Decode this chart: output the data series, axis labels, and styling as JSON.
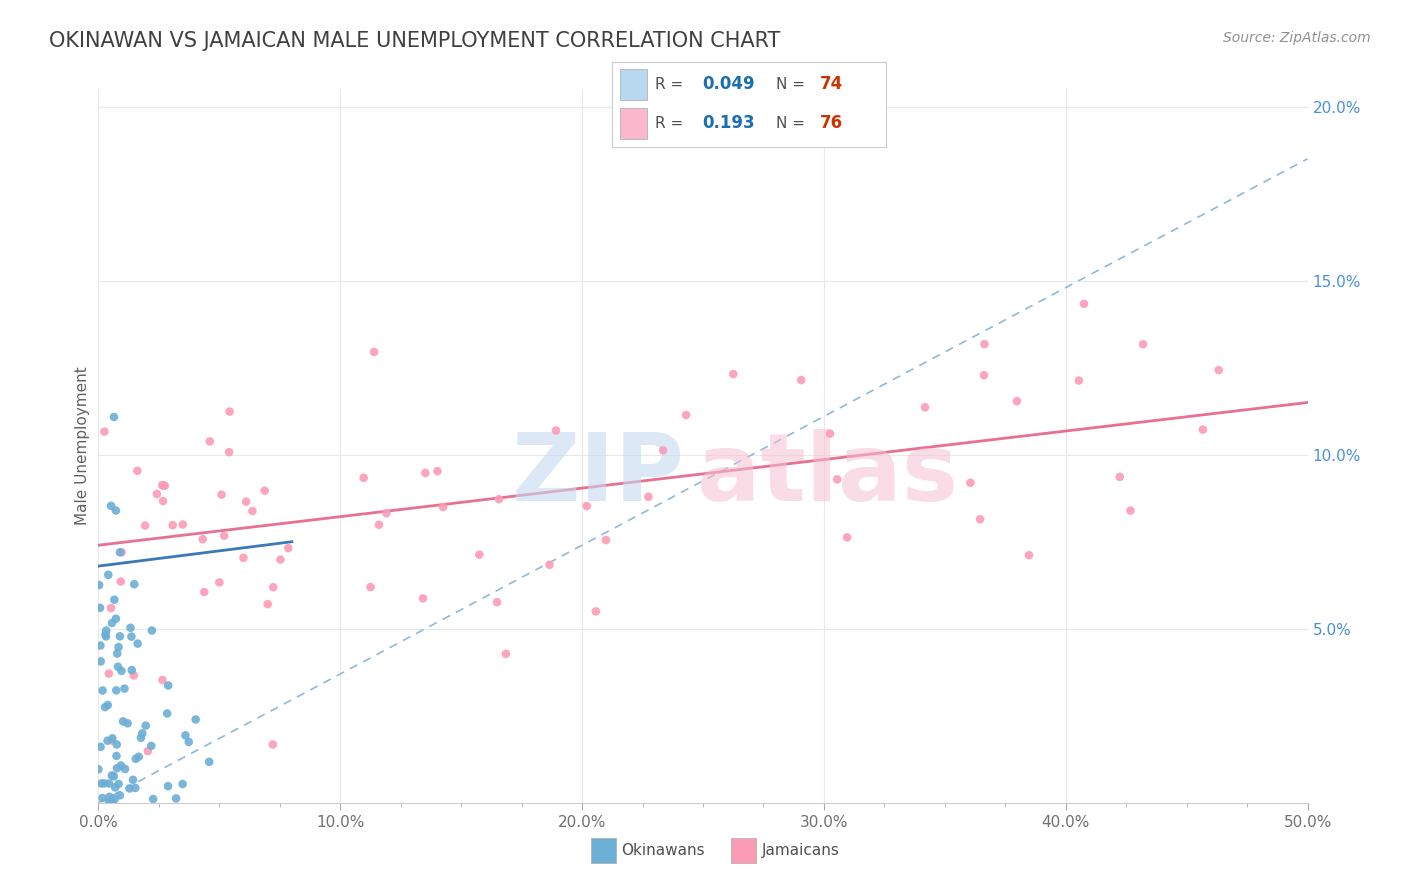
{
  "title": "OKINAWAN VS JAMAICAN MALE UNEMPLOYMENT CORRELATION CHART",
  "source_text": "Source: ZipAtlas.com",
  "ylabel": "Male Unemployment",
  "xlim": [
    0.0,
    0.5
  ],
  "ylim": [
    0.0,
    0.205
  ],
  "xticks_major": [
    0.0,
    0.1,
    0.2,
    0.3,
    0.4,
    0.5
  ],
  "xtick_labels": [
    "0.0%",
    "10.0%",
    "20.0%",
    "30.0%",
    "40.0%",
    "50.0%"
  ],
  "xticks_minor": [
    0.025,
    0.05,
    0.075,
    0.125,
    0.15,
    0.175,
    0.225,
    0.25,
    0.275,
    0.325,
    0.35,
    0.375,
    0.425,
    0.45,
    0.475
  ],
  "yticks_right": [
    0.05,
    0.1,
    0.15,
    0.2
  ],
  "ytick_labels_right": [
    "5.0%",
    "10.0%",
    "15.0%",
    "20.0%"
  ],
  "okinawan_color": "#6baed6",
  "jamaican_color": "#fc9bb5",
  "okinawan_R": 0.049,
  "okinawan_N": 74,
  "jamaican_R": 0.193,
  "jamaican_N": 76,
  "background_color": "#ffffff",
  "grid_color": "#e8e8e8",
  "legend_R_color": "#1a6faf",
  "legend_N_color": "#cc3300",
  "title_color": "#404040",
  "source_color": "#909090",
  "ok_line_x0": 0.0,
  "ok_line_x1": 0.08,
  "ok_line_y0": 0.068,
  "ok_line_y1": 0.075,
  "jam_line_x0": 0.0,
  "jam_line_x1": 0.5,
  "jam_line_y0": 0.074,
  "jam_line_y1": 0.115,
  "dashed_line_x0": 0.0,
  "dashed_line_x1": 0.5,
  "dashed_line_y0": 0.0,
  "dashed_line_y1": 0.185
}
